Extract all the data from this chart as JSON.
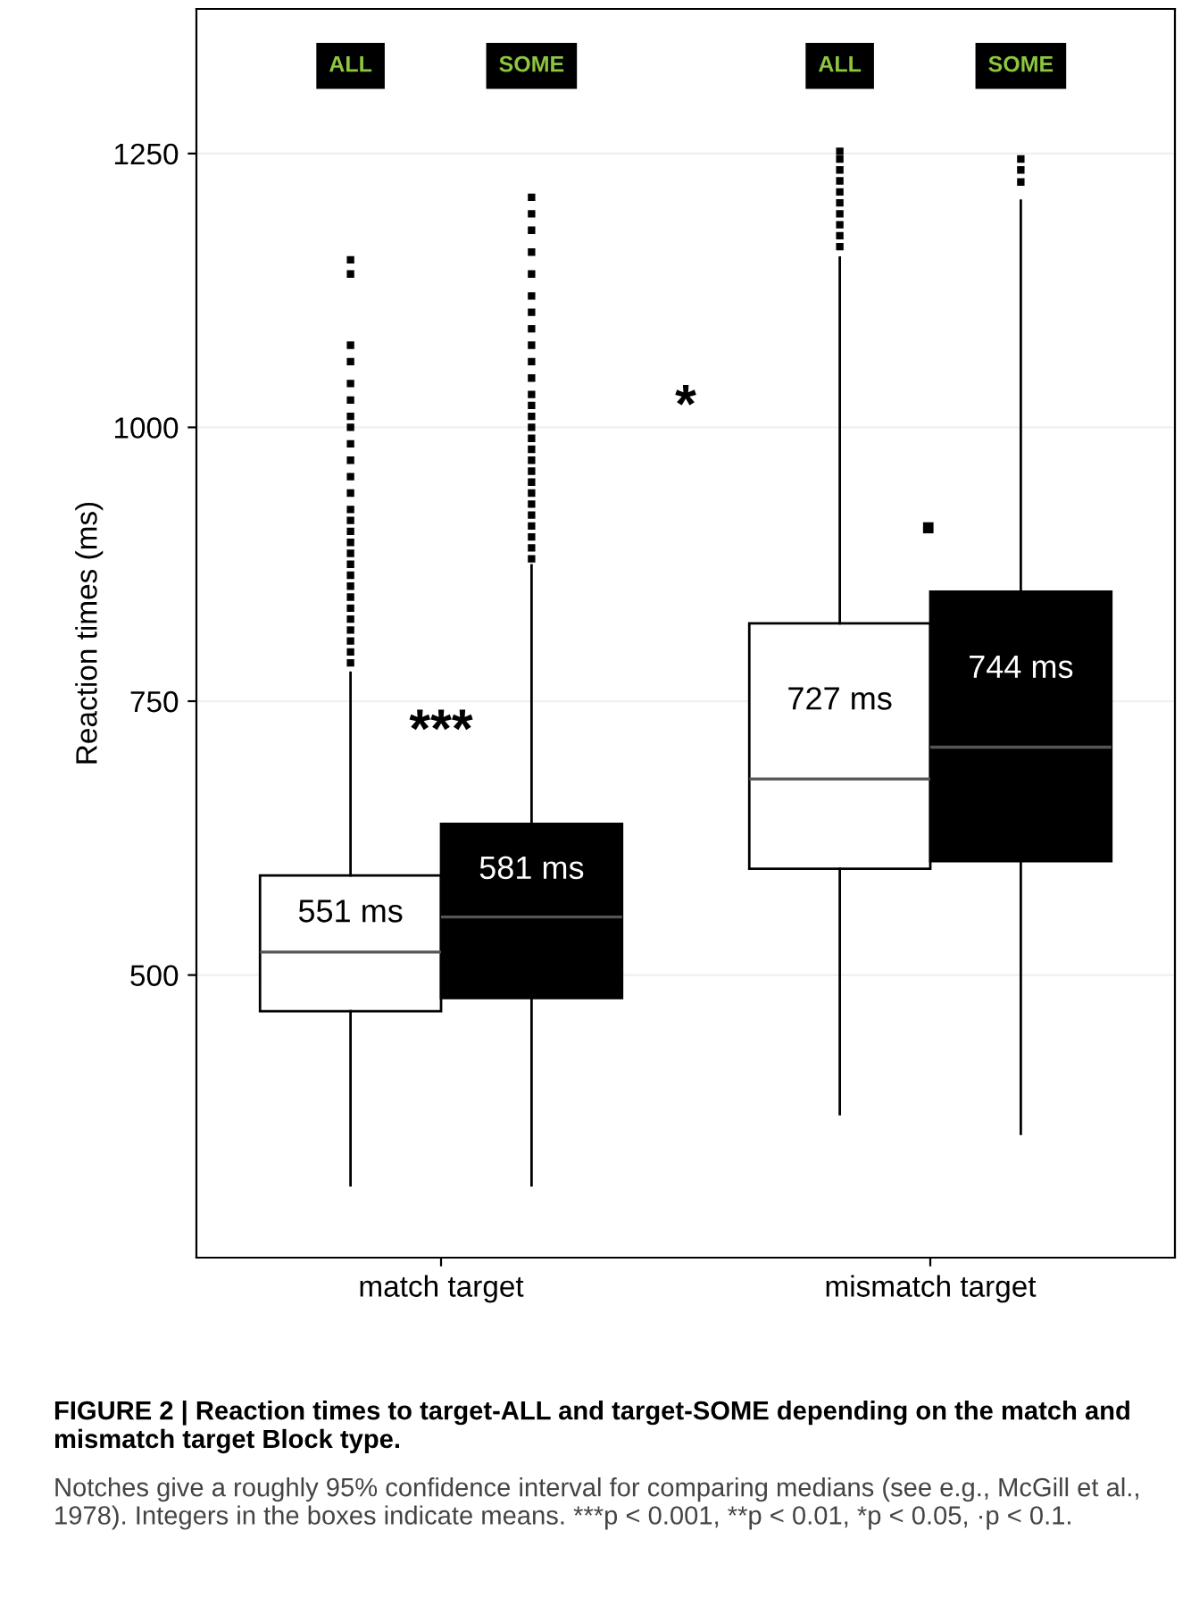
{
  "chart_data": {
    "type": "box",
    "ylabel": "Reaction times (ms)",
    "categories": [
      "match target",
      "mismatch target"
    ],
    "ylim": [
      242,
      1382
    ],
    "yticks": [
      500,
      750,
      1000,
      1250
    ],
    "grid": "y",
    "legend": false,
    "series": [
      {
        "name": "ALL",
        "color": "#ffffff",
        "value_labels": [
          "551 ms",
          "727 ms"
        ],
        "boxes": [
          {
            "low": 308,
            "q1": 467,
            "median": 521,
            "q3": 591,
            "high": 776,
            "outliers": [
              785,
              795,
              805,
              815,
              825,
              835,
              845,
              855,
              865,
              875,
              885,
              895,
              905,
              915,
              925,
              940,
              955,
              970,
              985,
              1000,
              1010,
              1025,
              1040,
              1060,
              1075,
              1140,
              1153
            ]
          },
          {
            "low": 373,
            "q1": 597,
            "median": 679,
            "q3": 821,
            "high": 1155,
            "outliers": [
              1165,
              1175,
              1185,
              1195,
              1205,
              1215,
              1225,
              1235,
              1245,
              1252
            ]
          }
        ]
      },
      {
        "name": "SOME",
        "color": "#000000",
        "value_labels": [
          "581 ms",
          "744 ms"
        ],
        "boxes": [
          {
            "low": 308,
            "q1": 479,
            "median": 553,
            "q3": 638,
            "high": 874,
            "outliers": [
              880,
              890,
              900,
              910,
              920,
              930,
              940,
              950,
              960,
              970,
              980,
              990,
              1000,
              1010,
              1020,
              1030,
              1045,
              1060,
              1075,
              1090,
              1105,
              1120,
              1140,
              1160,
              1180,
              1195,
              1210
            ]
          },
          {
            "low": 355,
            "q1": 604,
            "median": 708,
            "q3": 850,
            "high": 1207,
            "outliers": [
              1224,
              1235,
              1245
            ]
          }
        ]
      }
    ],
    "annotations": [
      "***",
      "·",
      "*",
      "FIGURE 2 | Reaction times to target-ALL and target-SOME depending on the match and mismatch target Block type.",
      "Notches give a roughly 95% confidence interval for comparing medians (see e.g., McGill et al., 1978). Integers in the boxes indicate means. ***p < 0.001, **p < 0.01, *p < 0.05, ·p < 0.1."
    ]
  }
}
